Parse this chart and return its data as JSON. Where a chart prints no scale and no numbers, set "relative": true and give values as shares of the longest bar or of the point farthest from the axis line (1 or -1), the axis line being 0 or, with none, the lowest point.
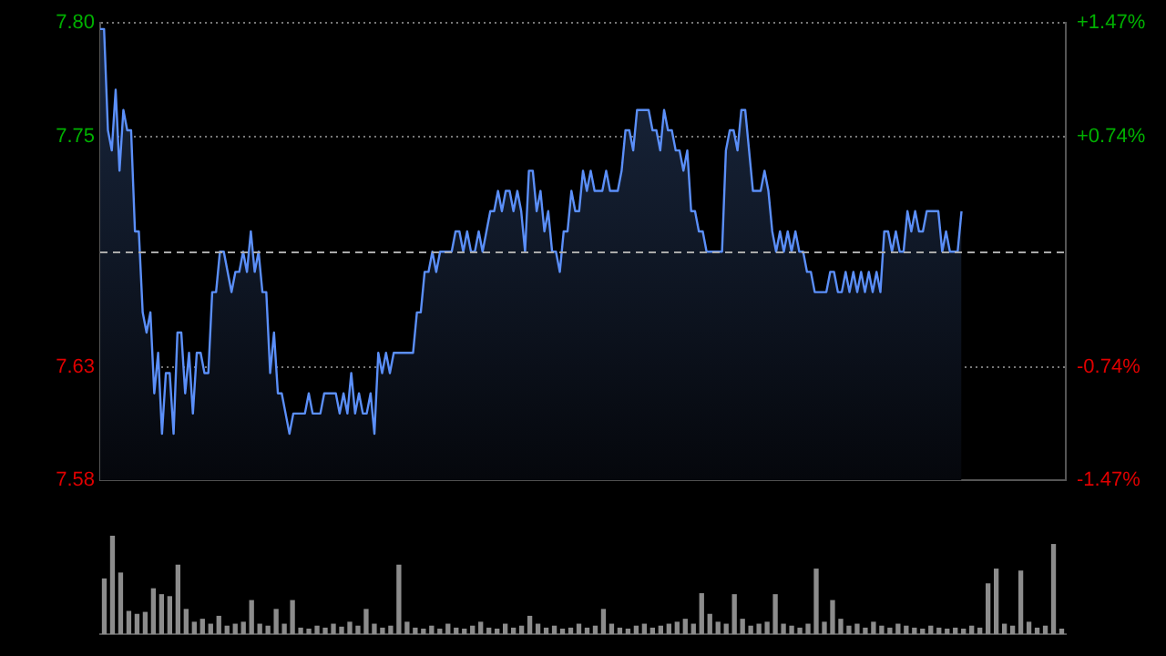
{
  "chart_data": [
    {
      "type": "area",
      "categories": [
        null,
        null,
        null,
        null,
        null,
        null,
        null,
        null,
        null,
        null,
        null,
        null,
        null,
        null,
        null,
        null,
        null,
        null,
        null,
        null,
        null,
        null,
        null,
        null,
        null,
        null,
        null,
        null,
        null,
        null,
        null,
        null,
        null,
        null,
        null,
        null,
        null,
        null,
        null,
        null,
        null,
        null,
        null,
        null,
        null,
        null,
        null,
        null,
        null,
        null,
        null,
        null,
        null,
        null,
        null,
        null,
        null,
        null,
        null,
        null,
        null,
        null,
        null,
        null,
        null,
        null,
        null,
        null,
        null,
        null,
        null,
        null,
        null,
        null,
        null,
        null,
        null,
        null,
        null,
        null,
        null,
        null,
        null,
        null,
        null,
        null,
        null,
        null,
        null,
        null,
        null,
        null,
        null,
        null,
        null,
        null,
        null,
        null,
        null,
        null,
        null,
        null,
        null,
        null,
        null,
        null,
        null,
        null,
        null,
        null,
        null,
        null,
        null,
        null,
        null,
        null,
        null,
        null,
        null,
        null,
        null,
        null,
        null,
        null,
        null,
        null,
        null,
        null,
        null,
        null,
        null,
        null,
        null,
        null,
        null,
        null,
        null,
        null,
        null,
        null,
        null,
        null,
        null,
        null,
        null,
        null,
        null,
        null,
        null,
        null,
        null,
        null,
        null,
        null,
        null,
        null,
        null,
        null,
        null,
        null,
        null,
        null,
        null,
        null,
        null,
        null,
        null,
        null,
        null,
        null,
        null,
        null,
        null,
        null,
        null,
        null,
        null,
        null,
        null,
        null,
        null,
        null,
        null,
        null,
        null,
        null,
        null,
        null,
        null,
        null,
        null,
        null,
        null,
        null,
        null,
        null,
        null,
        null,
        null,
        null,
        null,
        null,
        null,
        null,
        null,
        null,
        null,
        null,
        null,
        null,
        null,
        null,
        null,
        null,
        null,
        null,
        null,
        null,
        null,
        null,
        null,
        null,
        null,
        null,
        null,
        null,
        null,
        null,
        null,
        null,
        null,
        null,
        null,
        null,
        null,
        null,
        null,
        null,
        null,
        null,
        null,
        null,
        null,
        null,
        null,
        null,
        null,
        null,
        null,
        null,
        null
      ],
      "ylim": [
        7.577,
        7.803
      ],
      "yticks": [
        {
          "value": 7.577,
          "label": "7.58"
        },
        {
          "value": 7.633,
          "label": "7.63"
        },
        {
          "value": 7.747,
          "label": "7.75"
        },
        {
          "value": 7.803,
          "label": "7.80"
        }
      ],
      "y2lim": [
        -1.47,
        1.47
      ],
      "y2ticks": [
        {
          "value": -1.47,
          "label": "-1.47%"
        },
        {
          "value": -0.74,
          "label": "-0.74%"
        },
        {
          "value": 0.74,
          "label": "+0.74%"
        },
        {
          "value": 1.47,
          "label": "+1.47%"
        }
      ],
      "grid": "y",
      "ref_lines": [
        {
          "axis": "y",
          "value": 7.69,
          "line_style": "dashed",
          "color": "#aaaaaa"
        }
      ],
      "series": [
        {
          "color": "#5b8ff9",
          "values": [
            7.8,
            7.8,
            7.75,
            7.74,
            7.77,
            7.73,
            7.76,
            7.75,
            7.75,
            7.7,
            7.7,
            7.66,
            7.65,
            7.66,
            7.62,
            7.64,
            7.6,
            7.63,
            7.63,
            7.6,
            7.65,
            7.65,
            7.62,
            7.64,
            7.61,
            7.64,
            7.64,
            7.63,
            7.63,
            7.67,
            7.67,
            7.69,
            7.69,
            7.68,
            7.67,
            7.68,
            7.68,
            7.69,
            7.68,
            7.7,
            7.68,
            7.69,
            7.67,
            7.67,
            7.63,
            7.65,
            7.62,
            7.62,
            7.61,
            7.6,
            7.61,
            7.61,
            7.61,
            7.61,
            7.62,
            7.61,
            7.61,
            7.61,
            7.62,
            7.62,
            7.62,
            7.62,
            7.61,
            7.62,
            7.61,
            7.63,
            7.61,
            7.62,
            7.61,
            7.61,
            7.62,
            7.6,
            7.64,
            7.63,
            7.64,
            7.63,
            7.64,
            7.64,
            7.64,
            7.64,
            7.64,
            7.64,
            7.66,
            7.66,
            7.68,
            7.68,
            7.69,
            7.68,
            7.69,
            7.69,
            7.69,
            7.69,
            7.7,
            7.7,
            7.69,
            7.7,
            7.69,
            7.69,
            7.7,
            7.69,
            7.7,
            7.71,
            7.71,
            7.72,
            7.71,
            7.72,
            7.72,
            7.71,
            7.72,
            7.71,
            7.69,
            7.73,
            7.73,
            7.71,
            7.72,
            7.7,
            7.71,
            7.69,
            7.69,
            7.68,
            7.7,
            7.7,
            7.72,
            7.71,
            7.71,
            7.73,
            7.72,
            7.73,
            7.72,
            7.72,
            7.72,
            7.73,
            7.72,
            7.72,
            7.72,
            7.73,
            7.75,
            7.75,
            7.74,
            7.76,
            7.76,
            7.76,
            7.76,
            7.75,
            7.75,
            7.74,
            7.76,
            7.75,
            7.75,
            7.74,
            7.74,
            7.73,
            7.74,
            7.71,
            7.71,
            7.7,
            7.7,
            7.69,
            7.69,
            7.69,
            7.69,
            7.69,
            7.74,
            7.75,
            7.75,
            7.74,
            7.76,
            7.76,
            7.74,
            7.72,
            7.72,
            7.72,
            7.73,
            7.72,
            7.7,
            7.69,
            7.7,
            7.69,
            7.7,
            7.69,
            7.7,
            7.69,
            7.69,
            7.68,
            7.68,
            7.67,
            7.67,
            7.67,
            7.67,
            7.68,
            7.68,
            7.67,
            7.67,
            7.68,
            7.67,
            7.68,
            7.67,
            7.68,
            7.67,
            7.68,
            7.67,
            7.68,
            7.67,
            7.7,
            7.7,
            7.69,
            7.7,
            7.69,
            7.69,
            7.71,
            7.7,
            7.71,
            7.7,
            7.7,
            7.71,
            7.71,
            7.71,
            7.71,
            7.69,
            7.7,
            7.69,
            7.69,
            7.69,
            7.71,
            null,
            null,
            null,
            null,
            null,
            null,
            null,
            null,
            null,
            null,
            null,
            null,
            null,
            null,
            null,
            null,
            null,
            null,
            null,
            null,
            null,
            null,
            null,
            null,
            null,
            null,
            null
          ]
        }
      ]
    },
    {
      "type": "bar",
      "relative": true,
      "color": "#8c8c8c",
      "categories": [
        null,
        null,
        null,
        null,
        null,
        null,
        null,
        null,
        null,
        null,
        null,
        null,
        null,
        null,
        null,
        null,
        null,
        null,
        null,
        null,
        null,
        null,
        null,
        null,
        null,
        null,
        null,
        null,
        null,
        null,
        null,
        null,
        null,
        null,
        null,
        null,
        null,
        null,
        null,
        null,
        null,
        null,
        null,
        null,
        null,
        null,
        null,
        null,
        null,
        null,
        null,
        null,
        null,
        null,
        null,
        null,
        null,
        null,
        null,
        null,
        null,
        null,
        null,
        null,
        null,
        null,
        null,
        null,
        null,
        null,
        null,
        null,
        null,
        null,
        null,
        null,
        null,
        null,
        null,
        null,
        null,
        null,
        null,
        null,
        null,
        null,
        null,
        null,
        null,
        null,
        null,
        null,
        null,
        null,
        null,
        null,
        null,
        null,
        null,
        null,
        null,
        null,
        null,
        null,
        null,
        null,
        null,
        null,
        null,
        null,
        null,
        null,
        null,
        null,
        null,
        null,
        null,
        null
      ],
      "values": [
        0.56,
        1,
        0.62,
        0.23,
        0.2,
        0.22,
        0.46,
        0.4,
        0.38,
        0.7,
        0.25,
        0.12,
        0.15,
        0.1,
        0.18,
        0.08,
        0.1,
        0.12,
        0.34,
        0.1,
        0.08,
        0.25,
        0.1,
        0.34,
        0.06,
        0.05,
        0.08,
        0.06,
        0.1,
        0.07,
        0.12,
        0.08,
        0.25,
        0.1,
        0.06,
        0.08,
        0.7,
        0.12,
        0.06,
        0.05,
        0.08,
        0.05,
        0.1,
        0.06,
        0.05,
        0.08,
        0.12,
        0.06,
        0.05,
        0.1,
        0.06,
        0.08,
        0.18,
        0.1,
        0.06,
        0.08,
        0.05,
        0.06,
        0.1,
        0.06,
        0.08,
        0.25,
        0.1,
        0.06,
        0.05,
        0.08,
        0.1,
        0.06,
        0.08,
        0.1,
        0.12,
        0.15,
        0.1,
        0.41,
        0.2,
        0.12,
        0.1,
        0.4,
        0.15,
        0.08,
        0.1,
        0.12,
        0.4,
        0.1,
        0.08,
        0.06,
        0.1,
        0.66,
        0.12,
        0.34,
        0.15,
        0.08,
        0.1,
        0.06,
        0.12,
        0.08,
        0.06,
        0.1,
        0.08,
        0.06,
        0.05,
        0.08,
        0.06,
        0.05,
        0.06,
        0.05,
        0.08,
        0.06,
        0.51,
        0.66,
        0.1,
        0.08,
        0.64,
        0.12,
        0.06,
        0.08,
        0.91,
        0.05
      ]
    }
  ]
}
